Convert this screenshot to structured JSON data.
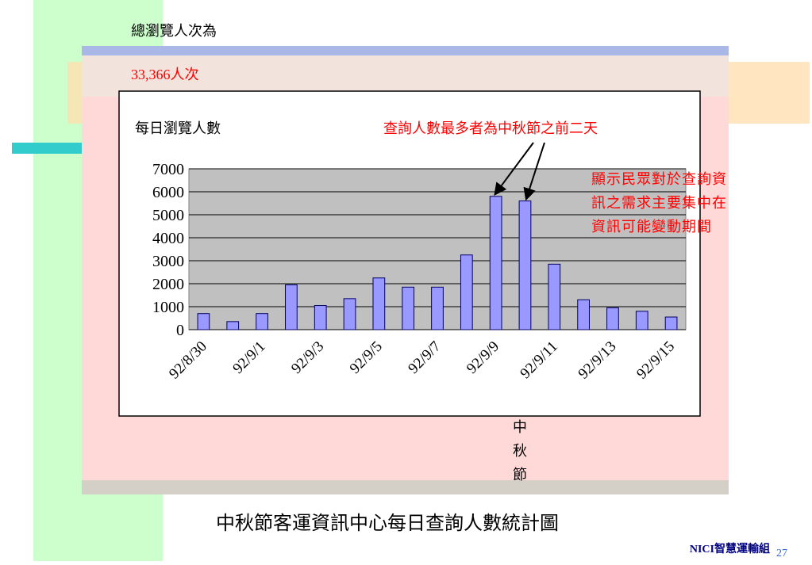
{
  "total_label": "總瀏覽人次為",
  "total_value": "33,366人次",
  "festival_label": [
    "中",
    "秋",
    "節"
  ],
  "caption": "中秋節客運資訊中心每日查詢人數統計圖",
  "footer": "NICI智慧運輸組",
  "page_number": "27",
  "chart_data": {
    "type": "bar",
    "title": "每日瀏覽人數",
    "annotation": "查詢人數最多者為中秋節之前二天",
    "note_lines": [
      "顯示民眾對於查詢資",
      "訊之需求主要集中在",
      "資訊可能變動期間"
    ],
    "categories": [
      "92/8/30",
      null,
      "92/9/1",
      null,
      "92/9/3",
      null,
      "92/9/5",
      null,
      "92/9/7",
      null,
      "92/9/9",
      null,
      "92/9/11",
      null,
      "92/9/13",
      null,
      "92/9/15"
    ],
    "values": [
      700,
      350,
      700,
      1950,
      1050,
      1350,
      2250,
      1850,
      1850,
      3250,
      5800,
      5600,
      2850,
      1300,
      950,
      800,
      550
    ],
    "color": "#9999ff",
    "ylim": [
      0,
      7000
    ],
    "yticks": [
      0,
      1000,
      2000,
      3000,
      4000,
      5000,
      6000,
      7000
    ],
    "grid": true
  }
}
